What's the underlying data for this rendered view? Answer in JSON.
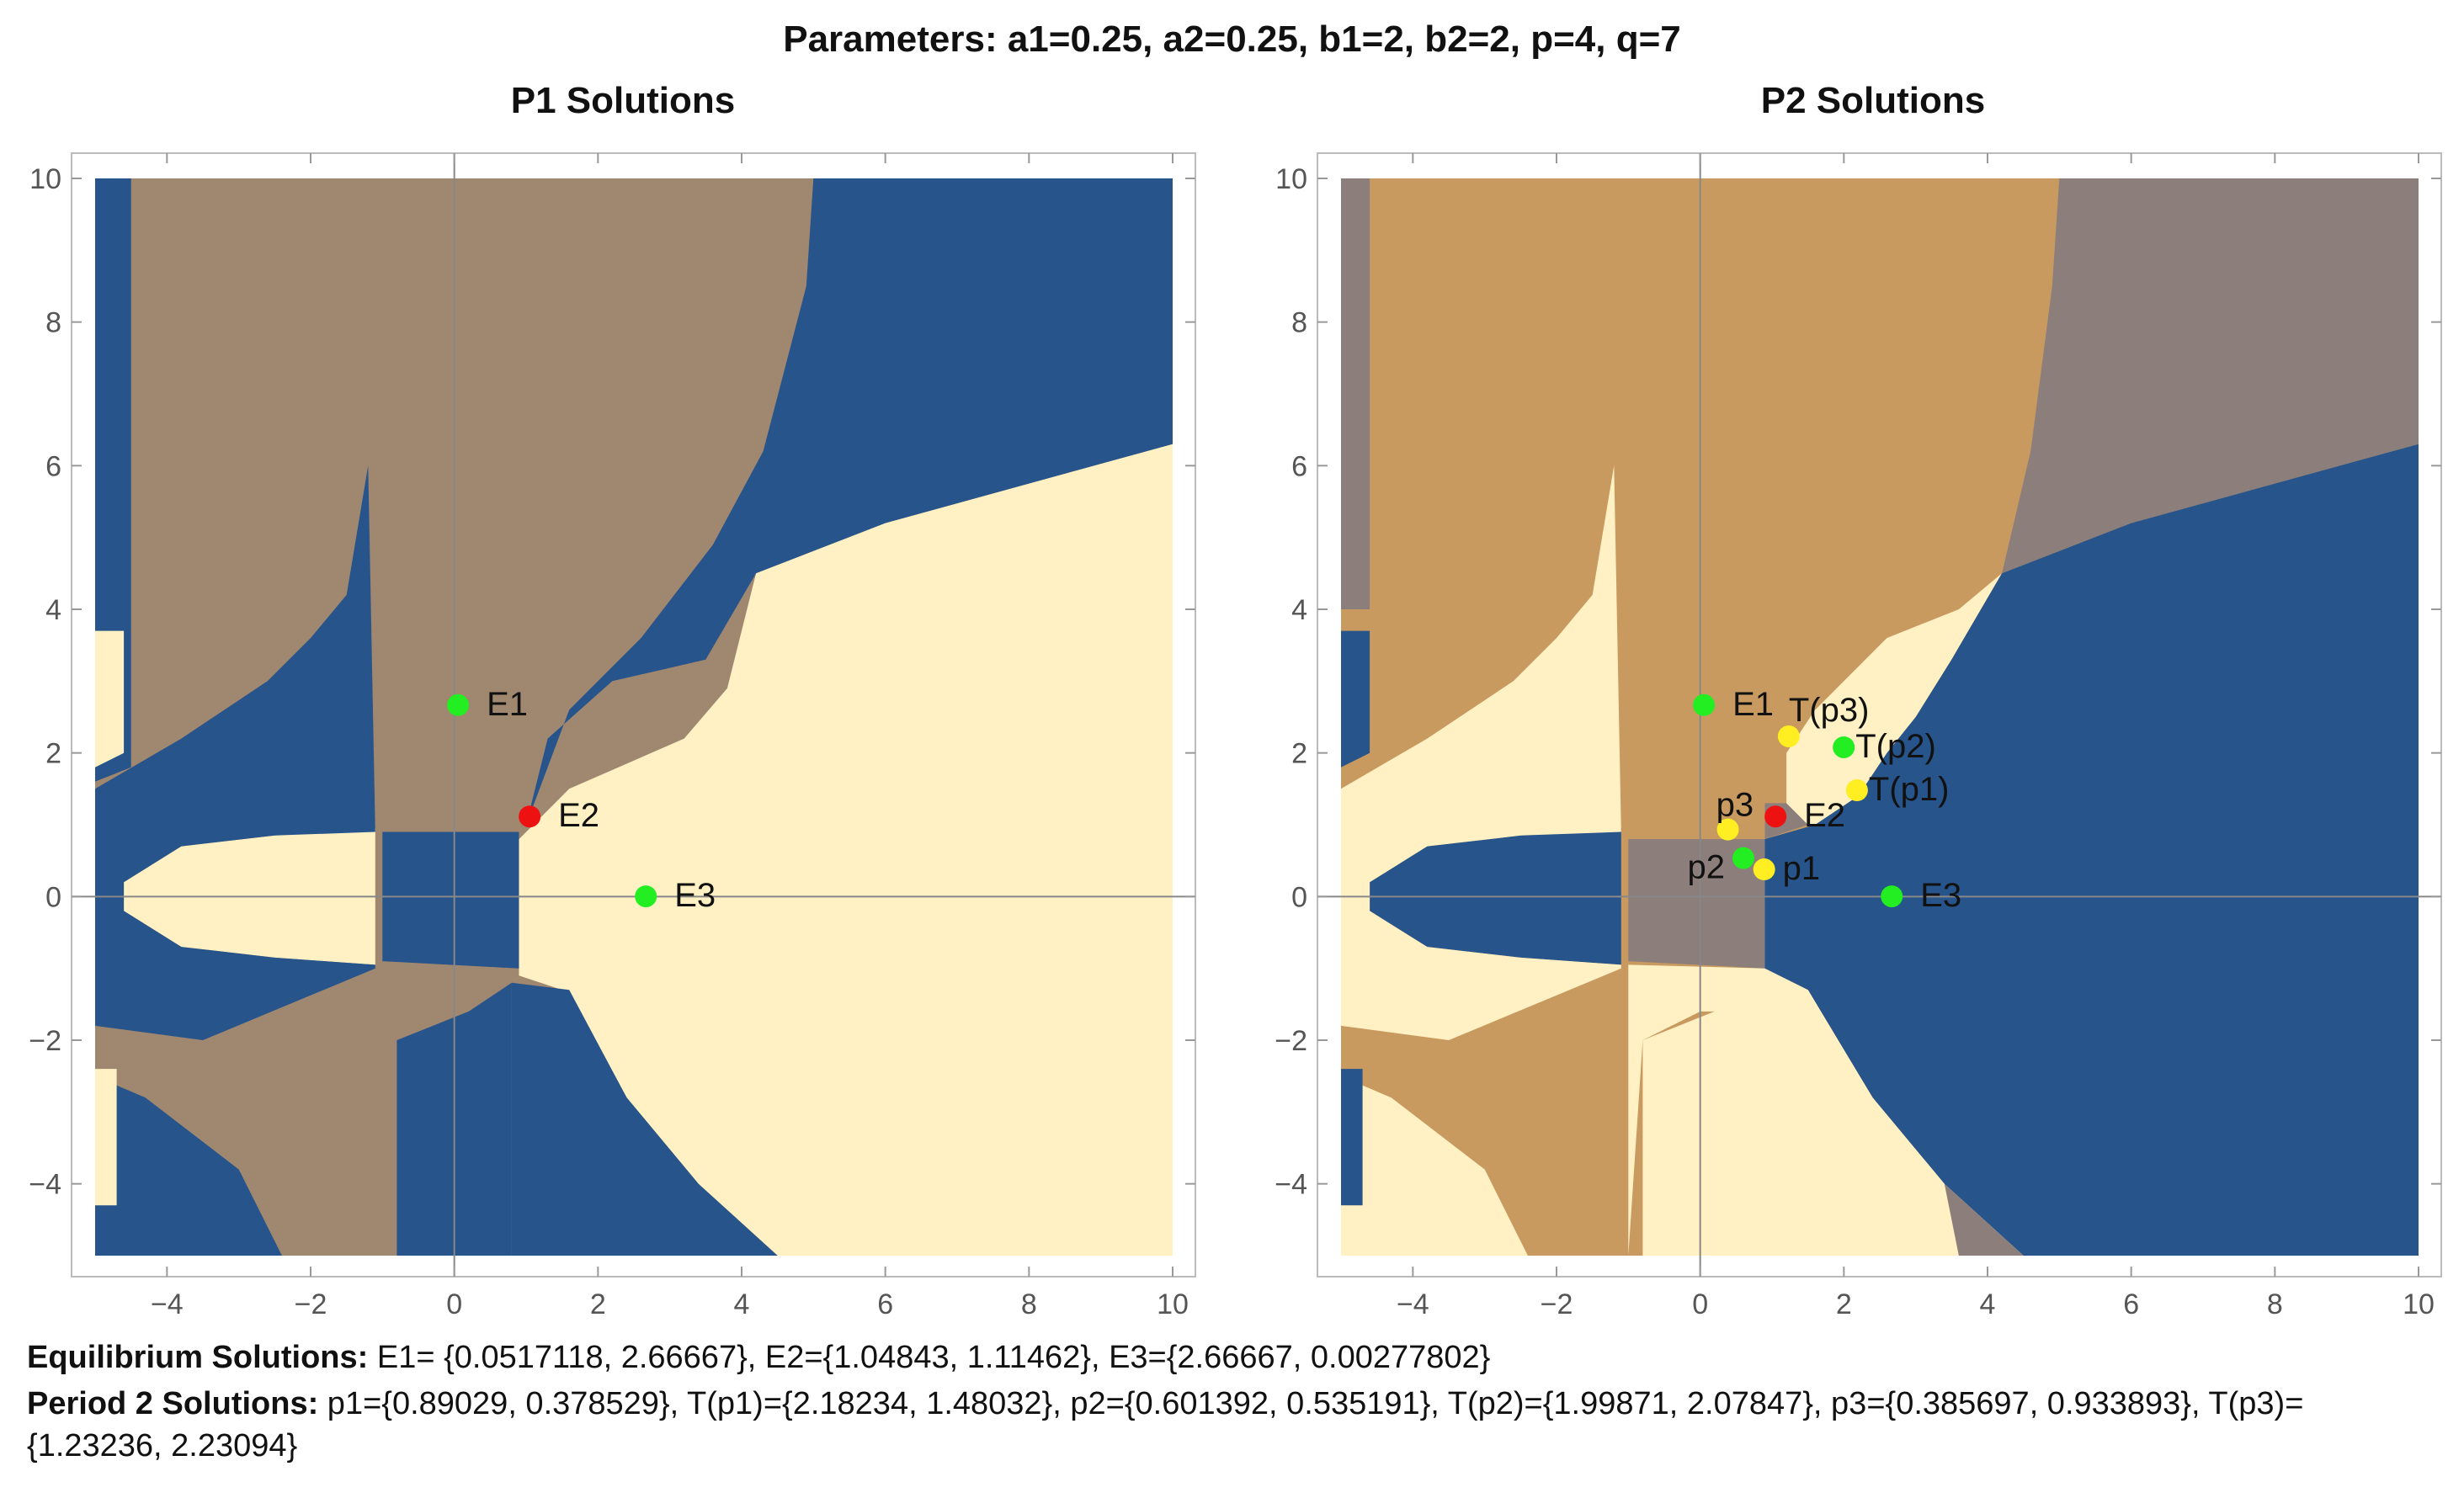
{
  "title": "Parameters: a1=0.25, a2=0.25, b1=2, b2=2, p=4, q=7",
  "colors": {
    "blue": "#27548a",
    "taupe": "#a08770",
    "cream": "#fff1c3",
    "orange": "#c89a60",
    "grayish": "#8b7e7b",
    "marker_green": "#22ee22",
    "marker_red": "#ee1111",
    "marker_yellow": "#ffee22"
  },
  "chart_data": [
    {
      "type": "heatmap",
      "title": "P1 Solutions",
      "xlabel": "",
      "ylabel": "",
      "xlim": [
        -5,
        10
      ],
      "ylim": [
        -5,
        10
      ],
      "x_ticks": [
        "-4",
        "-2",
        "0",
        "2",
        "4",
        "6",
        "8",
        "10"
      ],
      "y_ticks": [
        "-4",
        "-2",
        "0",
        "2",
        "4",
        "6",
        "8",
        "10"
      ],
      "background": "taupe",
      "regions": [
        {
          "color": "blue",
          "points": [
            [
              5.0,
              10
            ],
            [
              10,
              10
            ],
            [
              10,
              6.3
            ],
            [
              6,
              5.2
            ],
            [
              4.2,
              4.5
            ],
            [
              3.5,
              3.3
            ],
            [
              2.2,
              3.0
            ],
            [
              1.3,
              2.2
            ],
            [
              1.0,
              1.0
            ],
            [
              1.6,
              2.6
            ],
            [
              2.6,
              3.6
            ],
            [
              3.6,
              4.9
            ],
            [
              4.3,
              6.2
            ],
            [
              4.9,
              8.5
            ]
          ]
        },
        {
          "color": "cream",
          "points": [
            [
              4.2,
              4.5
            ],
            [
              6,
              5.2
            ],
            [
              10,
              6.3
            ],
            [
              10,
              -5
            ],
            [
              4.5,
              -5
            ],
            [
              3.4,
              -4.0
            ],
            [
              2.4,
              -2.8
            ],
            [
              1.5,
              -1.3
            ],
            [
              0.9,
              -1.1
            ],
            [
              0.9,
              0.8
            ],
            [
              1.6,
              1.5
            ],
            [
              3.2,
              2.2
            ],
            [
              3.8,
              2.9
            ]
          ]
        },
        {
          "color": "blue",
          "points": [
            [
              -1.0,
              0.9
            ],
            [
              0.9,
              0.9
            ],
            [
              0.9,
              -1.0
            ],
            [
              -1.0,
              -0.9
            ]
          ]
        },
        {
          "color": "blue",
          "points": [
            [
              0.8,
              -1.2
            ],
            [
              1.6,
              -1.3
            ],
            [
              2.4,
              -2.8
            ],
            [
              3.4,
              -4.0
            ],
            [
              4.5,
              -5
            ],
            [
              0.8,
              -5
            ]
          ]
        },
        {
          "color": "cream",
          "points": [
            [
              -4.6,
              0.2
            ],
            [
              -3.8,
              0.7
            ],
            [
              -2.5,
              0.85
            ],
            [
              -1.1,
              0.95
            ],
            [
              -1.1,
              -0.95
            ],
            [
              -2.5,
              -0.85
            ],
            [
              -3.8,
              -0.7
            ],
            [
              -4.6,
              -0.2
            ]
          ]
        },
        {
          "color": "blue",
          "points": [
            [
              -5,
              1.5
            ],
            [
              -3.8,
              2.2
            ],
            [
              -2.6,
              3.0
            ],
            [
              -2.0,
              3.6
            ],
            [
              -1.5,
              4.2
            ],
            [
              -1.2,
              6.0
            ],
            [
              -1.1,
              0.9
            ],
            [
              -2.5,
              0.85
            ],
            [
              -3.8,
              0.7
            ],
            [
              -4.6,
              0.2
            ],
            [
              -4.6,
              -0.2
            ],
            [
              -3.8,
              -0.7
            ],
            [
              -2.5,
              -0.85
            ],
            [
              -1.1,
              -0.95
            ],
            [
              -1.1,
              -1.0
            ],
            [
              -3.5,
              -2.0
            ],
            [
              -5,
              -1.8
            ]
          ]
        },
        {
          "color": "blue",
          "points": [
            [
              -5,
              10
            ],
            [
              -4.5,
              10
            ],
            [
              -4.5,
              1.8
            ],
            [
              -5,
              1.6
            ]
          ]
        },
        {
          "color": "blue",
          "points": [
            [
              -5,
              -2.5
            ],
            [
              -4.3,
              -2.8
            ],
            [
              -3.0,
              -3.8
            ],
            [
              -2.4,
              -5
            ],
            [
              -5,
              -5
            ]
          ]
        },
        {
          "color": "blue",
          "points": [
            [
              -0.8,
              -2.0
            ],
            [
              0.2,
              -1.6
            ],
            [
              0.8,
              -1.2
            ],
            [
              0.8,
              -5
            ],
            [
              -0.8,
              -5
            ]
          ]
        },
        {
          "color": "blue",
          "points": [
            [
              -4.2,
              -4.0
            ],
            [
              -3.2,
              -4.3
            ],
            [
              -2.4,
              -5
            ],
            [
              -4.2,
              -5
            ]
          ]
        },
        {
          "color": "cream",
          "points": [
            [
              -5,
              3.7
            ],
            [
              -4.6,
              3.7
            ],
            [
              -4.6,
              2.0
            ],
            [
              -5,
              1.8
            ]
          ]
        },
        {
          "color": "cream",
          "points": [
            [
              -5,
              -2.4
            ],
            [
              -4.7,
              -2.4
            ],
            [
              -4.7,
              -4.3
            ],
            [
              -5,
              -4.3
            ]
          ]
        }
      ],
      "markers": [
        {
          "label": "E1",
          "x": 0.0517118,
          "y": 2.66667,
          "color": "marker_green"
        },
        {
          "label": "E2",
          "x": 1.04843,
          "y": 1.11462,
          "color": "marker_red"
        },
        {
          "label": "E3",
          "x": 2.66667,
          "y": 0.00277802,
          "color": "marker_green"
        }
      ]
    },
    {
      "type": "heatmap",
      "title": "P2 Solutions",
      "xlabel": "",
      "ylabel": "",
      "xlim": [
        -5,
        10
      ],
      "ylim": [
        -5,
        10
      ],
      "x_ticks": [
        "-4",
        "-2",
        "0",
        "2",
        "4",
        "6",
        "8",
        "10"
      ],
      "y_ticks": [
        "-4",
        "-2",
        "0",
        "2",
        "4",
        "6",
        "8",
        "10"
      ],
      "background": "orange",
      "regions": [
        {
          "color": "grayish",
          "points": [
            [
              5.0,
              10
            ],
            [
              10,
              10
            ],
            [
              10,
              6.3
            ],
            [
              6,
              5.2
            ],
            [
              4.2,
              4.5
            ],
            [
              4.6,
              6.2
            ],
            [
              4.9,
              8.5
            ]
          ]
        },
        {
          "color": "cream",
          "points": [
            [
              1.2,
              2.0
            ],
            [
              1.6,
              2.6
            ],
            [
              2.6,
              3.6
            ],
            [
              3.6,
              4.0
            ],
            [
              4.2,
              4.5
            ],
            [
              3.5,
              3.3
            ],
            [
              3.0,
              2.5
            ],
            [
              2.6,
              2.0
            ],
            [
              2.2,
              1.4
            ],
            [
              1.6,
              1.0
            ],
            [
              1.2,
              1.0
            ]
          ]
        },
        {
          "color": "blue",
          "points": [
            [
              4.2,
              4.5
            ],
            [
              6,
              5.2
            ],
            [
              10,
              6.3
            ],
            [
              10,
              -5
            ],
            [
              4.5,
              -5
            ],
            [
              3.4,
              -4.0
            ],
            [
              2.4,
              -2.8
            ],
            [
              1.5,
              -1.3
            ],
            [
              0.9,
              -1.0
            ],
            [
              0.9,
              0.8
            ],
            [
              1.6,
              1.0
            ],
            [
              2.2,
              1.4
            ],
            [
              2.6,
              2.0
            ],
            [
              3.0,
              2.5
            ],
            [
              3.5,
              3.3
            ]
          ]
        },
        {
          "color": "grayish",
          "points": [
            [
              -1.0,
              0.8
            ],
            [
              0.9,
              0.8
            ],
            [
              1.5,
              1.0
            ],
            [
              1.2,
              1.3
            ],
            [
              0.9,
              1.3
            ],
            [
              0.9,
              -1.0
            ],
            [
              -1.0,
              -0.9
            ]
          ]
        },
        {
          "color": "cream",
          "points": [
            [
              -1.0,
              0.9
            ],
            [
              -1.0,
              -0.95
            ],
            [
              0.9,
              -1.0
            ],
            [
              1.5,
              -1.3
            ],
            [
              2.4,
              -2.8
            ],
            [
              3.4,
              -4.0
            ],
            [
              4.5,
              -5
            ],
            [
              3.6,
              -5
            ],
            [
              3.2,
              -4.2
            ],
            [
              2.0,
              -3.3
            ],
            [
              0.9,
              -1.6
            ],
            [
              0.0,
              -1.6
            ],
            [
              -0.8,
              -2.0
            ],
            [
              -1.0,
              -5
            ],
            [
              -1.0,
              0.9
            ]
          ]
        },
        {
          "color": "blue",
          "points": [
            [
              -4.6,
              0.2
            ],
            [
              -3.8,
              0.7
            ],
            [
              -2.5,
              0.85
            ],
            [
              -1.1,
              0.95
            ],
            [
              -1.1,
              -0.95
            ],
            [
              -2.5,
              -0.85
            ],
            [
              -3.8,
              -0.7
            ],
            [
              -4.6,
              -0.2
            ]
          ]
        },
        {
          "color": "cream",
          "points": [
            [
              -5,
              1.5
            ],
            [
              -3.8,
              2.2
            ],
            [
              -2.6,
              3.0
            ],
            [
              -2.0,
              3.6
            ],
            [
              -1.5,
              4.2
            ],
            [
              -1.2,
              6.0
            ],
            [
              -1.1,
              0.9
            ],
            [
              -2.5,
              0.85
            ],
            [
              -3.8,
              0.7
            ],
            [
              -4.6,
              0.2
            ],
            [
              -4.6,
              -0.2
            ],
            [
              -3.8,
              -0.7
            ],
            [
              -2.5,
              -0.85
            ],
            [
              -1.1,
              -0.95
            ],
            [
              -1.1,
              -1.0
            ],
            [
              -3.5,
              -2.0
            ],
            [
              -5,
              -1.8
            ]
          ]
        },
        {
          "color": "cream",
          "points": [
            [
              -5,
              -2.5
            ],
            [
              -4.3,
              -2.8
            ],
            [
              -3.0,
              -3.8
            ],
            [
              -2.4,
              -5
            ],
            [
              -5,
              -5
            ]
          ]
        },
        {
          "color": "cream",
          "points": [
            [
              -0.8,
              -2.0
            ],
            [
              0.2,
              -1.6
            ],
            [
              0.8,
              -1.2
            ],
            [
              1.5,
              -1.3
            ],
            [
              2.4,
              -2.8
            ],
            [
              3.4,
              -4.0
            ],
            [
              3.6,
              -5
            ],
            [
              -0.8,
              -5
            ]
          ]
        },
        {
          "color": "grayish",
          "points": [
            [
              3.4,
              -4.0
            ],
            [
              3.6,
              -5
            ],
            [
              4.5,
              -5
            ]
          ]
        },
        {
          "color": "blue",
          "points": [
            [
              -5,
              3.7
            ],
            [
              -4.6,
              3.7
            ],
            [
              -4.6,
              2.0
            ],
            [
              -5,
              1.8
            ]
          ]
        },
        {
          "color": "blue",
          "points": [
            [
              -5,
              -2.4
            ],
            [
              -4.7,
              -2.4
            ],
            [
              -4.7,
              -4.3
            ],
            [
              -5,
              -4.3
            ]
          ]
        },
        {
          "color": "grayish",
          "points": [
            [
              -5,
              10
            ],
            [
              -4.6,
              10
            ],
            [
              -4.6,
              4.0
            ],
            [
              -5,
              4.0
            ]
          ]
        }
      ],
      "markers": [
        {
          "label": "E1",
          "x": 0.0517118,
          "y": 2.66667,
          "color": "marker_green"
        },
        {
          "label": "E2",
          "x": 1.04843,
          "y": 1.11462,
          "color": "marker_red"
        },
        {
          "label": "E3",
          "x": 2.66667,
          "y": 0.00277802,
          "color": "marker_green"
        },
        {
          "label": "p1",
          "x": 0.89029,
          "y": 0.378529,
          "color": "marker_yellow"
        },
        {
          "label": "T(p1)",
          "x": 2.18234,
          "y": 1.48032,
          "color": "marker_yellow"
        },
        {
          "label": "p2",
          "x": 0.601392,
          "y": 0.535191,
          "color": "marker_green"
        },
        {
          "label": "T(p2)",
          "x": 1.99871,
          "y": 2.07847,
          "color": "marker_green"
        },
        {
          "label": "p3",
          "x": 0.385697,
          "y": 0.933893,
          "color": "marker_yellow"
        },
        {
          "label": "T(p3)",
          "x": 1.23236,
          "y": 2.23094,
          "color": "marker_yellow"
        }
      ]
    }
  ],
  "footer": {
    "equilibrium_label": "Equilibrium Solutions:",
    "equilibrium_text": " E1= {0.0517118, 2.66667}, E2={1.04843, 1.11462}, E3={2.66667, 0.00277802}",
    "period2_label": "Period 2 Solutions:",
    "period2_text": " p1={0.89029, 0.378529}, T(p1)={2.18234, 1.48032}, p2={0.601392,   0.535191}, T(p2)={1.99871, 2.07847}, p3={0.385697, 0.933893}, T(p3)={1.23236, 2.23094}"
  }
}
